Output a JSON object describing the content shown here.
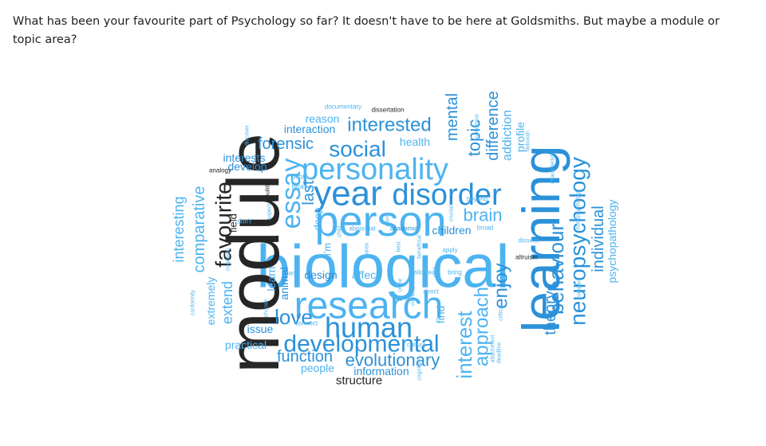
{
  "question": "What has been your favourite part of Psychology so far? It doesn't have to be here at Goldsmiths. But maybe a module or topic area?",
  "palette": {
    "dark": "#262626",
    "blue": "#2B91D9",
    "light": "#4DB3F0",
    "pale": "#7AC5F5",
    "darkblue": "#1C7FC6"
  },
  "words": [
    {
      "text": "biological"
    },
    {
      "text": "module"
    },
    {
      "text": "learning"
    },
    {
      "text": "person"
    },
    {
      "text": "research"
    },
    {
      "text": "year"
    },
    {
      "text": "personality"
    },
    {
      "text": "disorder"
    },
    {
      "text": "human"
    },
    {
      "text": "developmental"
    },
    {
      "text": "essay"
    },
    {
      "text": "neuropsychology"
    },
    {
      "text": "social"
    },
    {
      "text": "interested"
    },
    {
      "text": "favourite"
    },
    {
      "text": "behaviour"
    },
    {
      "text": "interest"
    },
    {
      "text": "approach"
    },
    {
      "text": "evolutionary"
    },
    {
      "text": "love"
    },
    {
      "text": "topic"
    },
    {
      "text": "enjoy"
    },
    {
      "text": "difference"
    },
    {
      "text": "mental"
    },
    {
      "text": "comparative"
    },
    {
      "text": "brain"
    },
    {
      "text": "forensic"
    },
    {
      "text": "function"
    },
    {
      "text": "theory"
    },
    {
      "text": "individual"
    },
    {
      "text": "last"
    },
    {
      "text": "interesting"
    },
    {
      "text": "extend"
    },
    {
      "text": "addiction"
    },
    {
      "text": "psychopathology"
    },
    {
      "text": "structure"
    },
    {
      "text": "information"
    },
    {
      "text": "interaction"
    },
    {
      "text": "interests"
    },
    {
      "text": "reason"
    },
    {
      "text": "extremely"
    },
    {
      "text": "profile"
    },
    {
      "text": "health"
    },
    {
      "text": "children"
    },
    {
      "text": "design"
    },
    {
      "text": "affect"
    },
    {
      "text": "people"
    },
    {
      "text": "practical"
    },
    {
      "text": "issue"
    },
    {
      "text": "develop"
    },
    {
      "text": "animal"
    },
    {
      "text": "learn"
    },
    {
      "text": "find"
    },
    {
      "text": "field"
    },
    {
      "text": "deep"
    },
    {
      "text": "i'm"
    },
    {
      "text": "dissertation"
    },
    {
      "text": "documentary"
    },
    {
      "text": "analogy"
    },
    {
      "text": "discover"
    },
    {
      "text": "depth"
    },
    {
      "text": "broken"
    },
    {
      "text": "building"
    },
    {
      "text": "beyond"
    },
    {
      "text": "broad"
    },
    {
      "text": "academic"
    },
    {
      "text": "abnormal"
    },
    {
      "text": "apply"
    },
    {
      "text": "dissent"
    },
    {
      "text": "altruism"
    },
    {
      "text": "allowed"
    },
    {
      "text": "bring"
    },
    {
      "text": "direct"
    },
    {
      "text": "can't"
    },
    {
      "text": "connect"
    },
    {
      "text": "don't"
    },
    {
      "text": "aspect"
    },
    {
      "text": "aren't"
    },
    {
      "text": "child"
    },
    {
      "text": "area"
    },
    {
      "text": "best"
    },
    {
      "text": "beneficial"
    },
    {
      "text": "cool"
    },
    {
      "text": "crucial"
    },
    {
      "text": "criminal"
    },
    {
      "text": "crime"
    },
    {
      "text": "culture"
    },
    {
      "text": "cognitive"
    },
    {
      "text": "cognition"
    },
    {
      "text": "conformity"
    },
    {
      "text": "choose"
    },
    {
      "text": "critical"
    },
    {
      "text": "compare"
    },
    {
      "text": "attachment"
    },
    {
      "text": "deadline"
    },
    {
      "text": "characteristic"
    },
    {
      "text": "deborah"
    },
    {
      "text": "confidence"
    },
    {
      "text": "bodypsychology"
    }
  ]
}
